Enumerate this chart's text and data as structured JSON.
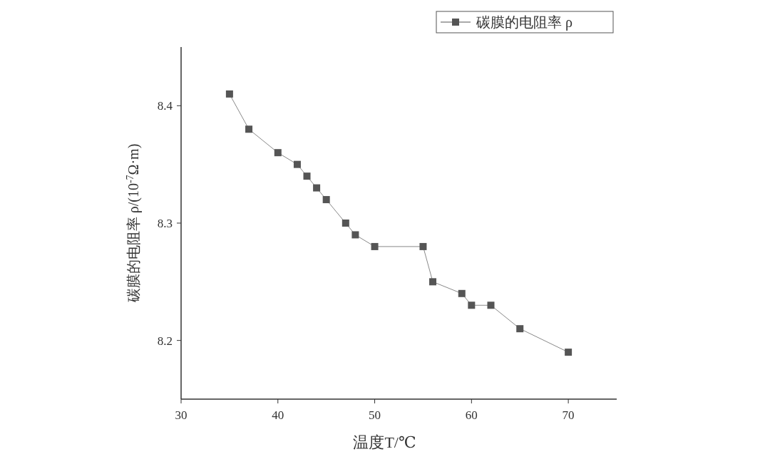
{
  "chart_data": {
    "type": "line",
    "xlabel": "温度T/℃",
    "ylabel": "碳膜的电阻率 ρ/(10$^{-7}$Ω·m)",
    "x": [
      35,
      37,
      40,
      42,
      43,
      44,
      45,
      47,
      48,
      50,
      55,
      56,
      59,
      60,
      62,
      65,
      70
    ],
    "series": [
      {
        "name": "碳膜的电阻率 ρ",
        "color": "#555555",
        "values": [
          8.41,
          8.38,
          8.36,
          8.35,
          8.34,
          8.33,
          8.32,
          8.3,
          8.29,
          8.28,
          8.28,
          8.25,
          8.24,
          8.23,
          8.23,
          8.21,
          8.19
        ]
      }
    ],
    "xlim": [
      30,
      75
    ],
    "xticks": [
      30,
      40,
      50,
      60,
      70
    ],
    "ylim": [
      8.15,
      8.45
    ],
    "yticks": [
      8.2,
      8.3,
      8.4
    ],
    "marker": "square",
    "line_style": "solid",
    "grid": false,
    "legend": "top right"
  }
}
